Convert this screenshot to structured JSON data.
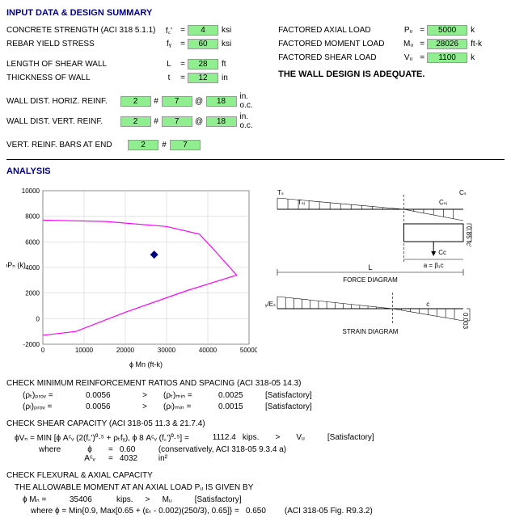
{
  "titles": {
    "input": "INPUT DATA & DESIGN SUMMARY",
    "analysis": "ANALYSIS"
  },
  "inputs": {
    "concrete_label": "CONCRETE STRENGTH (ACI 318 5.1.1)",
    "concrete_sym": "f꜀'",
    "concrete_val": "4",
    "concrete_unit": "ksi",
    "rebar_label": "REBAR YIELD STRESS",
    "rebar_sym": "fᵧ",
    "rebar_val": "60",
    "rebar_unit": "ksi",
    "length_label": "LENGTH OF SHEAR WALL",
    "length_sym": "L",
    "length_val": "28",
    "length_unit": "ft",
    "thick_label": "THICKNESS OF WALL",
    "thick_sym": "t",
    "thick_val": "12",
    "thick_unit": "in",
    "horiz_label": "WALL DIST. HORIZ. REINF.",
    "horiz_n": "2",
    "horiz_hash": "#",
    "horiz_size": "7",
    "horiz_at": "@",
    "horiz_sp": "18",
    "horiz_oc": "in. o.c.",
    "vert_label": "WALL DIST. VERT. REINF.",
    "vert_n": "2",
    "vert_hash": "#",
    "vert_size": "7",
    "vert_at": "@",
    "vert_sp": "18",
    "vert_oc": "in. o.c.",
    "end_label": "VERT. REINF. BARS AT END",
    "end_n": "2",
    "end_hash": "#",
    "end_size": "7"
  },
  "loads": {
    "axial_label": "FACTORED AXIAL LOAD",
    "axial_sym": "Pᵤ",
    "axial_val": "5000",
    "axial_unit": "k",
    "moment_label": "FACTORED MOMENT LOAD",
    "moment_sym": "Mᵤ",
    "moment_val": "28026",
    "moment_unit": "ft-k",
    "shear_label": "FACTORED SHEAR LOAD",
    "shear_sym": "Vᵤ",
    "shear_val": "1100",
    "shear_unit": "k",
    "adequate": "THE WALL DESIGN IS ADEQUATE."
  },
  "chart": {
    "ylabel": "ϕPₙ (k)",
    "xlabel": "ϕ Mn (ft-k)",
    "xticks": [
      "0",
      "10000",
      "20000",
      "30000",
      "40000",
      "50000"
    ],
    "yticks": [
      "-2000",
      "0",
      "2000",
      "4000",
      "6000",
      "8000",
      "10000"
    ],
    "curve_color": "#ff00ff",
    "point_color": "#000080",
    "curve": [
      [
        0,
        -1300
      ],
      [
        8000,
        -1000
      ],
      [
        20000,
        500
      ],
      [
        35000,
        2200
      ],
      [
        47000,
        3400
      ],
      [
        42000,
        5200
      ],
      [
        38000,
        6600
      ],
      [
        30000,
        7200
      ],
      [
        15000,
        7600
      ],
      [
        0,
        7700
      ]
    ],
    "point": [
      27000,
      5000
    ],
    "xlim": [
      0,
      50000
    ],
    "ylim": [
      -2000,
      10000
    ]
  },
  "diagrams": {
    "force_title": "FORCE DIAGRAM",
    "strain_title": "STRAIN DIAGRAM",
    "Ts": "Tₛ",
    "Tst": "Tₛᵢ",
    "Cs": "Cₛ",
    "Csi": "Cₛᵢ",
    "h085": "0.85 fc'",
    "Cc": "Cc",
    "L": "L",
    "a": "a = β₁c",
    "fyEs": "fᵧ/Eₛ",
    "c": "c",
    "e003": "0.003"
  },
  "checks": {
    "ratio_title": "CHECK MINIMUM REINFORCEMENT RATIOS AND SPACING (ACI 318-05 14.3)",
    "r1_sym": "(ρₜ)ₚᵣₒᵥ =",
    "r1_val": "0.0056",
    "r1_gt": ">",
    "r1_min_sym": "(ρₜ)ₘᵢₙ =",
    "r1_min_val": "0.0025",
    "r1_sat": "[Satisfactory]",
    "r2_sym": "(ρₗ)ₚᵣₒᵥ =",
    "r2_val": "0.0056",
    "r2_gt": ">",
    "r2_min_sym": "(ρₗ)ₘᵢₙ =",
    "r2_min_val": "0.0015",
    "r2_sat": "[Satisfactory]",
    "shear_title": "CHECK SHEAR CAPACITY (ACI 318-05 11.3 & 21.7.4)",
    "shear_eq": "ϕVₙ = MIN [ϕ Aᶜᵥ (2(f꜀')⁰·⁵ + ρₜfᵧ), ϕ 8 Aᶜᵥ (f꜀')⁰·⁵] =",
    "shear_val": "1112.4",
    "shear_unit": "kips.",
    "shear_gt": ">",
    "shear_vu": "Vᵤ",
    "shear_sat": "[Satisfactory]",
    "where": "where",
    "phi_sym": "ϕ",
    "phi_eq": "=",
    "phi_val": "0.60",
    "phi_note": "(conservatively, ACI 318-05 9.3.4 a)",
    "acv_sym": "Aᶜᵥ",
    "acv_eq": "=",
    "acv_val": "4032",
    "acv_unit": "in²",
    "flex_title": "CHECK FLEXURAL & AXIAL CAPACITY",
    "flex_sub": "THE ALLOWABLE MOMENT AT AN AXIAL LOAD Pᵤ IS GIVEN BY",
    "flex_sym": "ϕ Mₙ =",
    "flex_val": "35406",
    "flex_unit": "kips.",
    "flex_gt": ">",
    "flex_mu": "Mᵤ",
    "flex_sat": "[Satisfactory]",
    "flex_where": "where ϕ = Min{0.9, Max[0.65 + (εₜ - 0.002)(250/3), 0.65]} =",
    "flex_phi_val": "0.650",
    "flex_ref": "(ACI 318-05 Fig. R9.3.2)"
  }
}
